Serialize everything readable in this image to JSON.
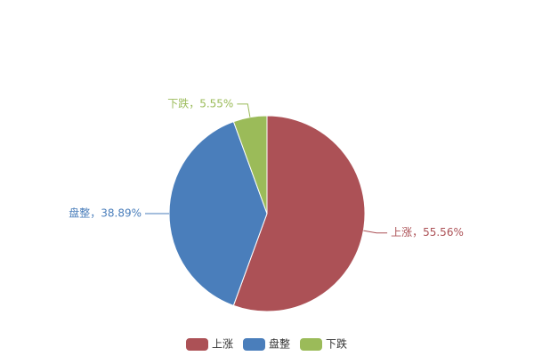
{
  "chart_data": {
    "type": "pie",
    "categories": [
      "上涨",
      "盘整",
      "下跌"
    ],
    "values": [
      55.56,
      38.89,
      5.55
    ],
    "value_labels": [
      "上涨，55.56%",
      "盘整，38.89%",
      "下跌，5.55%"
    ],
    "colors": [
      "#ac5156",
      "#4a7ebb",
      "#9bbb59"
    ],
    "legend": "bottom"
  }
}
